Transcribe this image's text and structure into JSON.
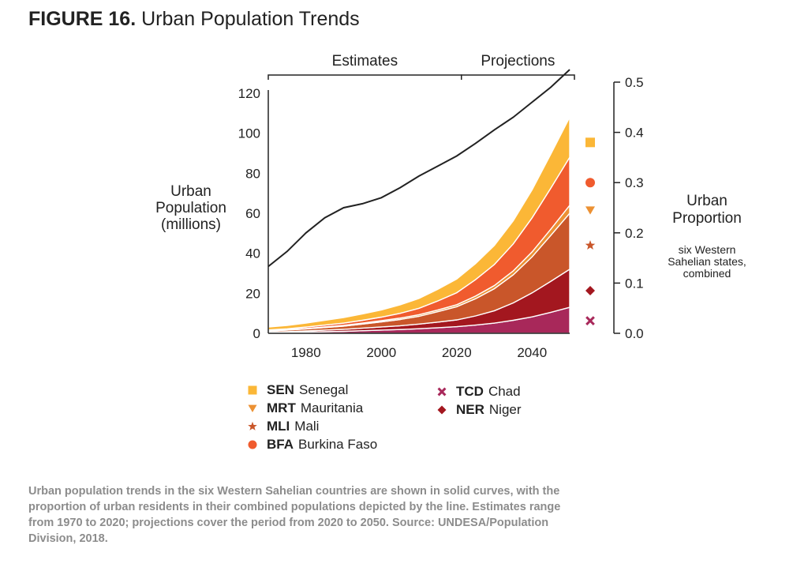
{
  "header": {
    "figure_label": "FIGURE 16.",
    "title": "Urban Population Trends"
  },
  "caption": "Urban population trends in the six Western Sahelian countries are shown in solid curves, with the proportion of urban residents in their combined populations depicted by the line. Estimates range from 1970 to 2020; projections cover the period from 2020 to 2050. Source: UNDESA/Population Division, 2018.",
  "chart_data": {
    "type": "area",
    "stacked": true,
    "periods": [
      {
        "label": "Estimates",
        "from": 1970,
        "to": 2020
      },
      {
        "label": "Projections",
        "from": 2020,
        "to": 2050
      }
    ],
    "x": [
      1970,
      1975,
      1980,
      1985,
      1990,
      1995,
      2000,
      2005,
      2010,
      2015,
      2020,
      2025,
      2030,
      2035,
      2040,
      2045,
      2050
    ],
    "x_ticks": [
      1980,
      2000,
      2020,
      2040
    ],
    "xlim": [
      1970,
      2050
    ],
    "y_left": {
      "label_lines": [
        "Urban",
        "Population",
        "(millions)"
      ],
      "ylim": [
        0,
        120
      ],
      "ticks": [
        0,
        20,
        40,
        60,
        80,
        100,
        120
      ]
    },
    "y_right": {
      "label_lines": [
        "Urban",
        "Proportion"
      ],
      "sub_lines": [
        "six Western",
        "Sahelian states,",
        "combined"
      ],
      "ylim": [
        0,
        0.5
      ],
      "ticks": [
        "0.0",
        "0.1",
        "0.2",
        "0.3",
        "0.4",
        "0.5"
      ],
      "tick_values": [
        0,
        0.1,
        0.2,
        0.3,
        0.4,
        0.5
      ]
    },
    "series": [
      {
        "code": "TCD",
        "name": "Chad",
        "color": "#a8285a",
        "marker": "x",
        "marker_value": 0.025,
        "values": [
          0.3,
          0.4,
          0.6,
          0.8,
          1.0,
          1.3,
          1.6,
          1.9,
          2.3,
          2.8,
          3.3,
          4.1,
          5.1,
          6.5,
          8.2,
          10.5,
          13.0
        ]
      },
      {
        "code": "NER",
        "name": "Niger",
        "color": "#a3171f",
        "marker": "diamond",
        "marker_value": 0.085,
        "values": [
          0.3,
          0.4,
          0.6,
          0.8,
          1.0,
          1.3,
          1.6,
          1.9,
          2.3,
          2.8,
          3.4,
          4.6,
          6.2,
          8.7,
          12.0,
          15.5,
          19.0
        ]
      },
      {
        "code": "MLI",
        "name": "Mali",
        "color": "#c9562a",
        "marker": "star",
        "marker_value": 0.175,
        "values": [
          0.6,
          0.8,
          1.0,
          1.3,
          1.6,
          2.0,
          2.5,
          3.1,
          3.9,
          5.2,
          6.6,
          8.6,
          11.0,
          14.0,
          18.0,
          23.0,
          28.0
        ]
      },
      {
        "code": "MRT",
        "name": "Mauritania",
        "color": "#ec9133",
        "marker": "triangle-down",
        "marker_value": 0.245,
        "values": [
          0.1,
          0.15,
          0.2,
          0.3,
          0.4,
          0.5,
          0.6,
          0.7,
          0.8,
          0.9,
          1.0,
          1.3,
          1.6,
          2.0,
          2.5,
          3.1,
          4.0
        ]
      },
      {
        "code": "BFA",
        "name": "Burkina Faso",
        "color": "#f05b2e",
        "marker": "circle",
        "marker_value": 0.3,
        "values": [
          0.4,
          0.5,
          0.7,
          0.9,
          1.1,
          1.4,
          1.8,
          2.4,
          3.2,
          4.5,
          6.0,
          8.2,
          10.5,
          13.5,
          17.0,
          20.5,
          24.0
        ]
      },
      {
        "code": "SEN",
        "name": "Senegal",
        "color": "#fbb737",
        "marker": "square",
        "marker_value": 0.38,
        "values": [
          1.4,
          1.7,
          2.0,
          2.4,
          2.8,
          3.2,
          3.6,
          4.2,
          4.9,
          5.8,
          6.8,
          8.0,
          9.5,
          11.5,
          14.0,
          17.0,
          20.0
        ]
      }
    ],
    "proportion_line": {
      "color": "#222222",
      "values": [
        0.133,
        0.163,
        0.2,
        0.23,
        0.25,
        0.258,
        0.27,
        0.29,
        0.313,
        0.333,
        0.353,
        0.378,
        0.405,
        0.43,
        0.46,
        0.49,
        0.525
      ]
    }
  }
}
